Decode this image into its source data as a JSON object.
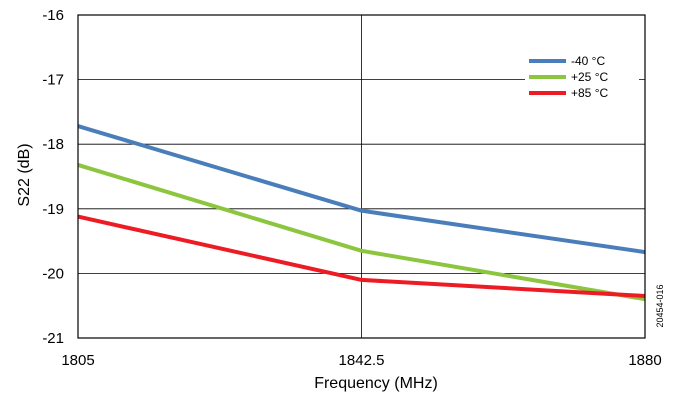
{
  "chart_data": {
    "type": "line",
    "xlabel": "Frequency (MHz)",
    "ylabel": "S22 (dB)",
    "xlim": [
      1805,
      1880
    ],
    "ylim": [
      -21,
      -16
    ],
    "x_ticks": [
      1805,
      1842.5,
      1880
    ],
    "x_tick_labels": [
      "1805",
      "1842.5",
      "1880"
    ],
    "y_ticks": [
      -16,
      -17,
      -18,
      -19,
      -20,
      -21
    ],
    "y_tick_labels": [
      "-16",
      "-17",
      "-18",
      "-19",
      "-20",
      "-21"
    ],
    "grid": true,
    "legend_position": "top-right",
    "x": [
      1805,
      1842.5,
      1880
    ],
    "series": [
      {
        "name": "-40 °C",
        "color": "#4a7ebb",
        "values": [
          -17.72,
          -19.03,
          -19.67
        ]
      },
      {
        "name": "+25 °C",
        "color": "#8cc63f",
        "values": [
          -18.32,
          -19.65,
          -20.4
        ]
      },
      {
        "name": "+85 °C",
        "color": "#ed1c24",
        "values": [
          -19.12,
          -20.1,
          -20.35
        ]
      }
    ]
  },
  "figure_id": "20454-016"
}
